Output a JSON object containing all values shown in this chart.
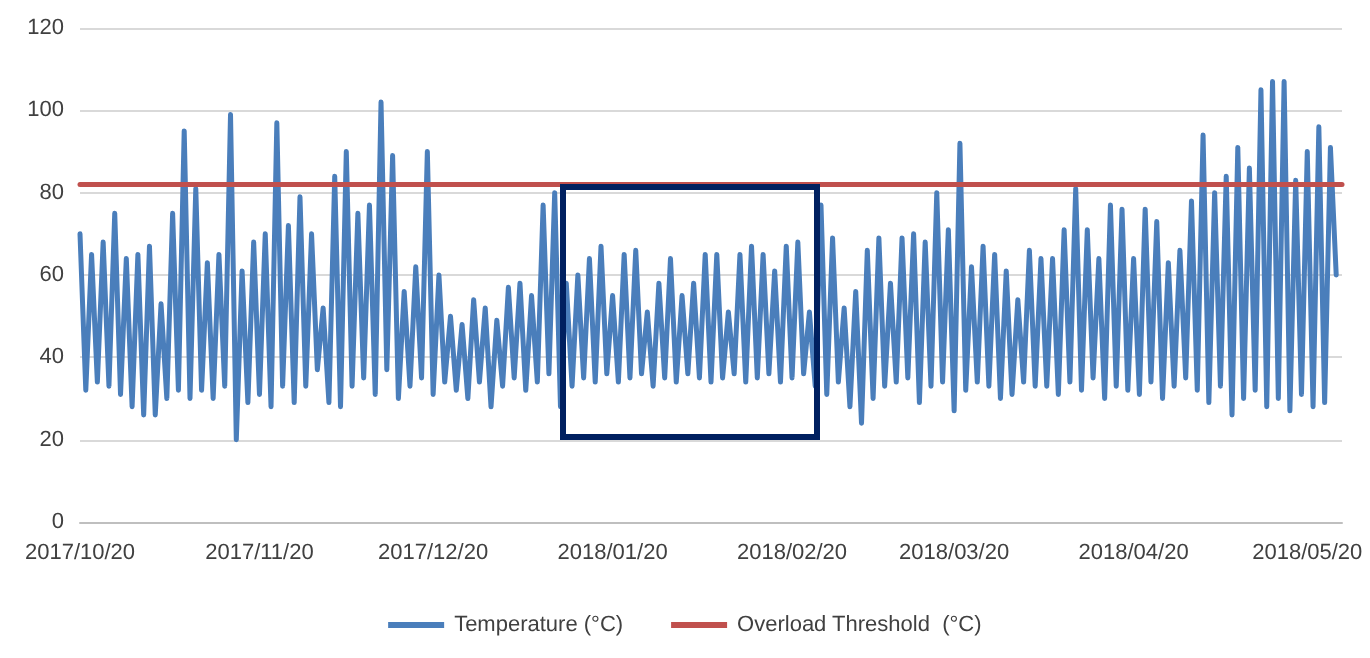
{
  "chart_data": {
    "type": "line",
    "xlim": [
      "2017-10-20",
      "2018-05-26"
    ],
    "xticks": [
      {
        "value": "2017-10-20",
        "label": "2017/10/20"
      },
      {
        "value": "2017-11-20",
        "label": "2017/11/20"
      },
      {
        "value": "2017-12-20",
        "label": "2017/12/20"
      },
      {
        "value": "2018-01-20",
        "label": "2018/01/20"
      },
      {
        "value": "2018-02-20",
        "label": "2018/02/20"
      },
      {
        "value": "2018-03-20",
        "label": "2018/03/20"
      },
      {
        "value": "2018-04-20",
        "label": "2018/04/20"
      },
      {
        "value": "2018-05-20",
        "label": "2018/05/20"
      }
    ],
    "ylim": [
      0,
      120
    ],
    "yticks": [
      0,
      20,
      40,
      60,
      80,
      100,
      120
    ],
    "grid": "y",
    "legend": "bottom",
    "marker": "none",
    "line_style": "solid",
    "series": [
      {
        "name": "Temperature (°C)",
        "color": "#4a7ebb",
        "x": [
          "2017-10-20",
          "2017-10-21",
          "2017-10-22",
          "2017-10-23",
          "2017-10-24",
          "2017-10-25",
          "2017-10-26",
          "2017-10-27",
          "2017-10-28",
          "2017-10-29",
          "2017-10-30",
          "2017-10-31",
          "2017-11-01",
          "2017-11-02",
          "2017-11-03",
          "2017-11-04",
          "2017-11-05",
          "2017-11-06",
          "2017-11-07",
          "2017-11-08",
          "2017-11-09",
          "2017-11-10",
          "2017-11-11",
          "2017-11-12",
          "2017-11-13",
          "2017-11-14",
          "2017-11-15",
          "2017-11-16",
          "2017-11-17",
          "2017-11-18",
          "2017-11-19",
          "2017-11-20",
          "2017-11-21",
          "2017-11-22",
          "2017-11-23",
          "2017-11-24",
          "2017-11-25",
          "2017-11-26",
          "2017-11-27",
          "2017-11-28",
          "2017-11-29",
          "2017-11-30",
          "2017-12-01",
          "2017-12-02",
          "2017-12-03",
          "2017-12-04",
          "2017-12-05",
          "2017-12-06",
          "2017-12-07",
          "2017-12-08",
          "2017-12-09",
          "2017-12-10",
          "2017-12-11",
          "2017-12-12",
          "2017-12-13",
          "2017-12-14",
          "2017-12-15",
          "2017-12-16",
          "2017-12-17",
          "2017-12-18",
          "2017-12-19",
          "2017-12-20",
          "2017-12-21",
          "2017-12-22",
          "2017-12-23",
          "2017-12-24",
          "2017-12-25",
          "2017-12-26",
          "2017-12-27",
          "2017-12-28",
          "2017-12-29",
          "2017-12-30",
          "2017-12-31",
          "2018-01-01",
          "2018-01-02",
          "2018-01-03",
          "2018-01-04",
          "2018-01-05",
          "2018-01-06",
          "2018-01-07",
          "2018-01-08",
          "2018-01-09",
          "2018-01-10",
          "2018-01-11",
          "2018-01-12",
          "2018-01-13",
          "2018-01-14",
          "2018-01-15",
          "2018-01-16",
          "2018-01-17",
          "2018-01-18",
          "2018-01-19",
          "2018-01-20",
          "2018-01-21",
          "2018-01-22",
          "2018-01-23",
          "2018-01-24",
          "2018-01-25",
          "2018-01-26",
          "2018-01-27",
          "2018-01-28",
          "2018-01-29",
          "2018-01-30",
          "2018-01-31",
          "2018-02-01",
          "2018-02-02",
          "2018-02-03",
          "2018-02-04",
          "2018-02-05",
          "2018-02-06",
          "2018-02-07",
          "2018-02-08",
          "2018-02-09",
          "2018-02-10",
          "2018-02-11",
          "2018-02-12",
          "2018-02-13",
          "2018-02-14",
          "2018-02-15",
          "2018-02-16",
          "2018-02-17",
          "2018-02-18",
          "2018-02-19",
          "2018-02-20",
          "2018-02-21",
          "2018-02-22",
          "2018-02-23",
          "2018-02-24",
          "2018-02-25",
          "2018-02-26",
          "2018-02-27",
          "2018-02-28",
          "2018-03-01",
          "2018-03-02",
          "2018-03-03",
          "2018-03-04",
          "2018-03-05",
          "2018-03-06",
          "2018-03-07",
          "2018-03-08",
          "2018-03-09",
          "2018-03-10",
          "2018-03-11",
          "2018-03-12",
          "2018-03-13",
          "2018-03-14",
          "2018-03-15",
          "2018-03-16",
          "2018-03-17",
          "2018-03-18",
          "2018-03-19",
          "2018-03-20",
          "2018-03-21",
          "2018-03-22",
          "2018-03-23",
          "2018-03-24",
          "2018-03-25",
          "2018-03-26",
          "2018-03-27",
          "2018-03-28",
          "2018-03-29",
          "2018-03-30",
          "2018-03-31",
          "2018-04-01",
          "2018-04-02",
          "2018-04-03",
          "2018-04-04",
          "2018-04-05",
          "2018-04-06",
          "2018-04-07",
          "2018-04-08",
          "2018-04-09",
          "2018-04-10",
          "2018-04-11",
          "2018-04-12",
          "2018-04-13",
          "2018-04-14",
          "2018-04-15",
          "2018-04-16",
          "2018-04-17",
          "2018-04-18",
          "2018-04-19",
          "2018-04-20",
          "2018-04-21",
          "2018-04-22",
          "2018-04-23",
          "2018-04-24",
          "2018-04-25",
          "2018-04-26",
          "2018-04-27",
          "2018-04-28",
          "2018-04-29",
          "2018-04-30",
          "2018-05-01",
          "2018-05-02",
          "2018-05-03",
          "2018-05-04",
          "2018-05-05",
          "2018-05-06",
          "2018-05-07",
          "2018-05-08",
          "2018-05-09",
          "2018-05-10",
          "2018-05-11",
          "2018-05-12",
          "2018-05-13",
          "2018-05-14",
          "2018-05-15",
          "2018-05-16",
          "2018-05-17",
          "2018-05-18",
          "2018-05-19",
          "2018-05-20",
          "2018-05-21",
          "2018-05-22",
          "2018-05-23",
          "2018-05-24",
          "2018-05-25"
        ],
        "values": [
          70,
          32,
          65,
          34,
          68,
          33,
          75,
          31,
          64,
          28,
          65,
          26,
          67,
          26,
          53,
          30,
          75,
          32,
          95,
          30,
          81,
          32,
          63,
          30,
          65,
          33,
          99,
          20,
          61,
          29,
          68,
          31,
          70,
          28,
          97,
          33,
          72,
          29,
          79,
          33,
          70,
          37,
          52,
          29,
          84,
          28,
          90,
          33,
          75,
          35,
          77,
          31,
          102,
          37,
          89,
          30,
          56,
          33,
          62,
          35,
          90,
          31,
          60,
          34,
          50,
          32,
          48,
          30,
          54,
          34,
          52,
          28,
          49,
          33,
          57,
          35,
          58,
          32,
          55,
          34,
          77,
          36,
          80,
          28,
          58,
          33,
          60,
          35,
          64,
          34,
          67,
          36,
          55,
          34,
          65,
          35,
          66,
          36,
          51,
          33,
          58,
          35,
          64,
          34,
          55,
          36,
          58,
          35,
          65,
          34,
          65,
          35,
          51,
          36,
          65,
          34,
          67,
          35,
          65,
          36,
          61,
          34,
          67,
          35,
          68,
          36,
          51,
          33,
          77,
          31,
          69,
          34,
          52,
          28,
          56,
          24,
          66,
          30,
          69,
          33,
          58,
          34,
          69,
          35,
          70,
          29,
          68,
          33,
          80,
          34,
          71,
          27,
          92,
          32,
          62,
          34,
          67,
          33,
          65,
          30,
          61,
          31,
          54,
          34,
          66,
          33,
          64,
          33,
          64,
          31,
          71,
          34,
          81,
          32,
          71,
          35,
          64,
          30,
          77,
          33,
          76,
          32,
          64,
          31,
          76,
          34,
          73,
          30,
          63,
          33,
          66,
          35,
          78,
          32,
          94,
          29,
          80,
          33,
          84,
          26,
          91,
          30,
          86,
          32,
          105,
          28,
          107,
          30,
          107,
          27,
          83,
          31,
          90,
          28,
          96,
          29,
          91,
          60
        ]
      },
      {
        "name": "Overload Threshold  (°C)",
        "color": "#c0504d",
        "x": [
          "2017-10-20",
          "2018-05-26"
        ],
        "values": [
          82,
          82
        ]
      }
    ]
  }
}
